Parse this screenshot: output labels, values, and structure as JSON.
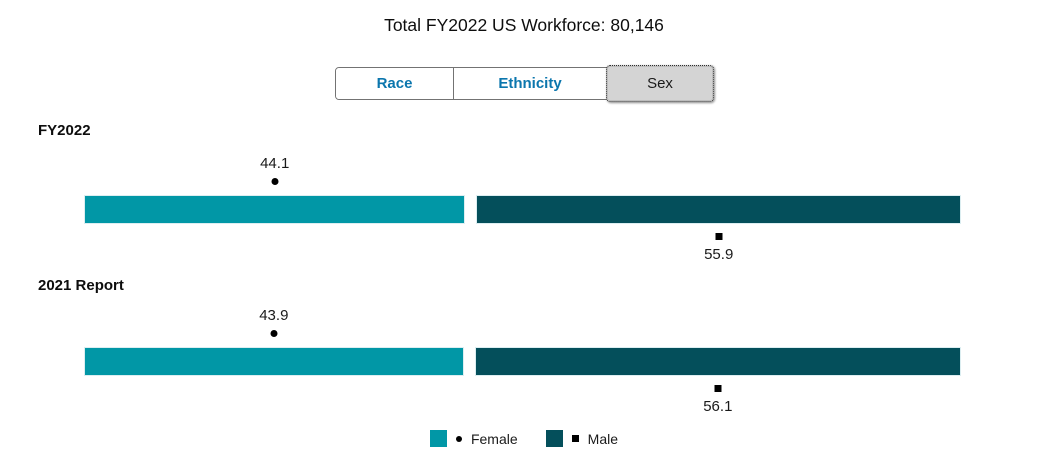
{
  "title": "Total FY2022 US Workforce: 80,146",
  "tabs": [
    {
      "label": "Race",
      "selected": false
    },
    {
      "label": "Ethnicity",
      "selected": false
    },
    {
      "label": "Sex",
      "selected": true
    }
  ],
  "colors": {
    "tab_text": "#0b76ad",
    "selected_tab_bg": "#d4d4d4",
    "female": "#0197a6",
    "male": "#044f5b",
    "marker": "#000000"
  },
  "chart_data": {
    "type": "bar",
    "subtype": "horizontal-stacked-percent",
    "title": "Total FY2022 US Workforce: 80,146",
    "categories": [
      "FY2022",
      "2021 Report"
    ],
    "series": [
      {
        "name": "Female",
        "marker": "circle",
        "color": "#0197a6",
        "values": [
          44.1,
          43.9
        ]
      },
      {
        "name": "Male",
        "marker": "square",
        "color": "#044f5b",
        "values": [
          55.9,
          56.1
        ]
      }
    ],
    "xlim": [
      0,
      100
    ],
    "value_unit": "percent",
    "grid": false,
    "legend_position": "bottom"
  },
  "legend": {
    "items": [
      {
        "label": "Female",
        "marker": "circle"
      },
      {
        "label": "Male",
        "marker": "square"
      }
    ]
  }
}
